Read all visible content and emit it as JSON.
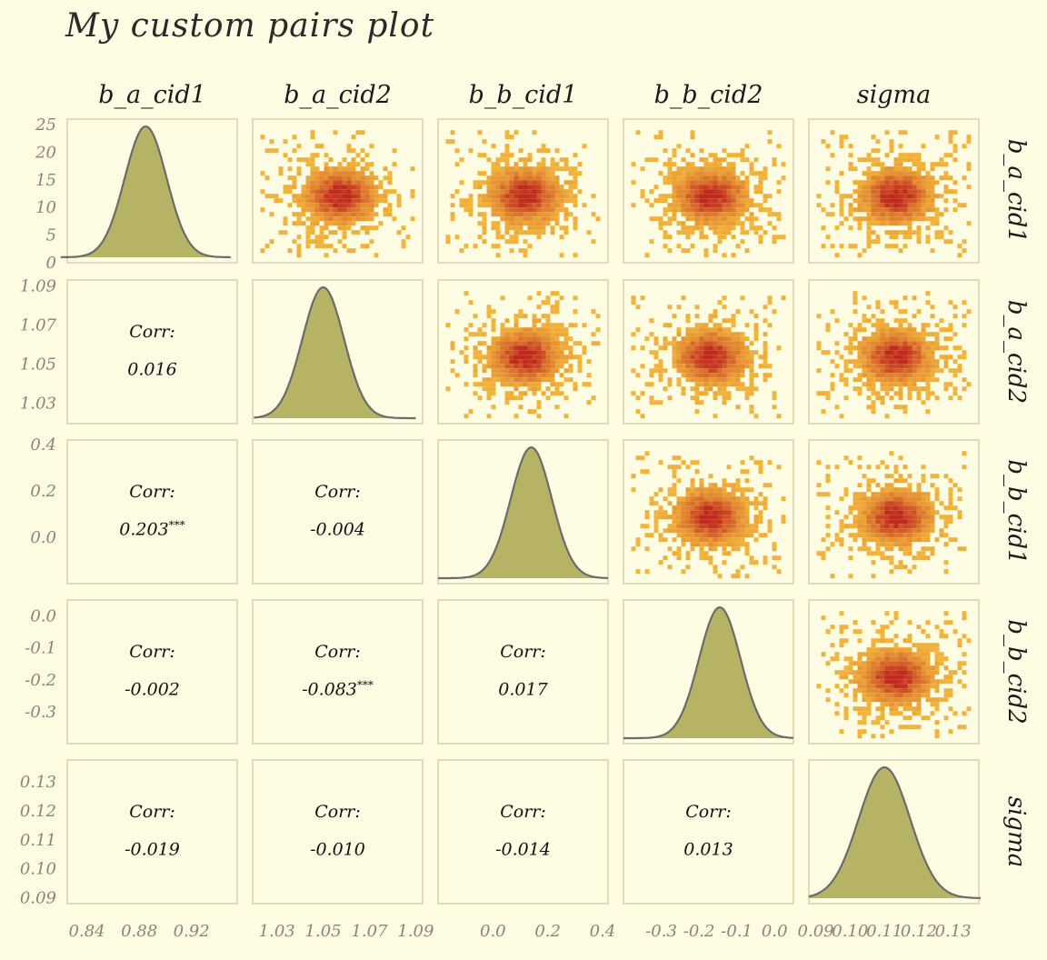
{
  "title": "My custom pairs plot",
  "colors": {
    "background": "#fefde4",
    "panel_border": "#e8d9b5",
    "density_fill": "#b6b464",
    "density_line": "#6b6b6b",
    "tick_text": "#8a8478",
    "heat_low": "#f2b43a",
    "heat_high": "#c02a1e"
  },
  "chart_data": {
    "type": "pairs",
    "variables": [
      "b_a_cid1",
      "b_a_cid2",
      "b_b_cid1",
      "b_b_cid2",
      "sigma"
    ],
    "diagonal": {
      "type": "density",
      "distributions": [
        {
          "variable": "b_a_cid1",
          "mean": 0.885,
          "sd": 0.016,
          "range": [
            0.82,
            0.95
          ]
        },
        {
          "variable": "b_a_cid2",
          "mean": 1.05,
          "sd": 0.009,
          "range": [
            1.02,
            1.09
          ]
        },
        {
          "variable": "b_b_cid1",
          "mean": 0.14,
          "sd": 0.075,
          "range": [
            -0.2,
            0.42
          ]
        },
        {
          "variable": "b_b_cid2",
          "mean": -0.145,
          "sd": 0.055,
          "range": [
            -0.4,
            0.05
          ]
        },
        {
          "variable": "sigma",
          "mean": 0.11,
          "sd": 0.0075,
          "range": [
            0.088,
            0.138
          ]
        }
      ],
      "first_panel_y_ticks": [
        "0",
        "5",
        "10",
        "15",
        "20",
        "25"
      ],
      "first_panel_y_range": [
        0,
        26
      ]
    },
    "upper": {
      "type": "bin2d"
    },
    "lower": {
      "type": "correlation",
      "label": "Corr:",
      "cells": [
        {
          "row": 1,
          "col": 0,
          "value": "0.016",
          "stars": ""
        },
        {
          "row": 2,
          "col": 0,
          "value": "0.203",
          "stars": "***"
        },
        {
          "row": 2,
          "col": 1,
          "value": "-0.004",
          "stars": ""
        },
        {
          "row": 3,
          "col": 0,
          "value": "-0.002",
          "stars": ""
        },
        {
          "row": 3,
          "col": 1,
          "value": "-0.083",
          "stars": "***"
        },
        {
          "row": 3,
          "col": 2,
          "value": "0.017",
          "stars": ""
        },
        {
          "row": 4,
          "col": 0,
          "value": "-0.019",
          "stars": ""
        },
        {
          "row": 4,
          "col": 1,
          "value": "-0.010",
          "stars": ""
        },
        {
          "row": 4,
          "col": 2,
          "value": "-0.014",
          "stars": ""
        },
        {
          "row": 4,
          "col": 3,
          "value": "0.013",
          "stars": ""
        }
      ]
    },
    "x_axes": [
      {
        "ticks": [
          "0.84",
          "0.88",
          "0.92"
        ],
        "values": [
          0.84,
          0.88,
          0.92
        ],
        "range": [
          0.825,
          0.955
        ]
      },
      {
        "ticks": [
          "1.03",
          "1.05",
          "1.07",
          "1.09"
        ],
        "values": [
          1.03,
          1.05,
          1.07,
          1.09
        ],
        "range": [
          1.0195,
          1.093
        ]
      },
      {
        "ticks": [
          "0.0",
          "0.2",
          "0.4"
        ],
        "values": [
          0.0,
          0.2,
          0.4
        ],
        "range": [
          -0.2,
          0.42
        ]
      },
      {
        "ticks": [
          "-0.3",
          "-0.2",
          "-0.1",
          "0.0"
        ],
        "values": [
          -0.3,
          -0.2,
          -0.1,
          0.0
        ],
        "range": [
          -0.4,
          0.05
        ]
      },
      {
        "ticks": [
          "0.09",
          "0.10",
          "0.11",
          "0.12",
          "0.13"
        ],
        "values": [
          0.09,
          0.1,
          0.11,
          0.12,
          0.13
        ],
        "range": [
          0.088,
          0.1375
        ]
      }
    ],
    "y_axes": [
      {
        "ticks": [
          "0",
          "5",
          "10",
          "15",
          "20",
          "25"
        ],
        "values": [
          0,
          5,
          10,
          15,
          20,
          25
        ],
        "range": [
          0,
          26
        ]
      },
      {
        "ticks": [
          "1.03",
          "1.05",
          "1.07",
          "1.09"
        ],
        "values": [
          1.03,
          1.05,
          1.07,
          1.09
        ],
        "range": [
          1.0195,
          1.093
        ]
      },
      {
        "ticks": [
          "0.0",
          "0.2",
          "0.4"
        ],
        "values": [
          0.0,
          0.2,
          0.4
        ],
        "range": [
          -0.2,
          0.42
        ]
      },
      {
        "ticks": [
          "-0.3",
          "-0.2",
          "-0.1",
          "0.0"
        ],
        "values": [
          -0.3,
          -0.2,
          -0.1,
          0.0
        ],
        "range": [
          -0.4,
          0.05
        ]
      },
      {
        "ticks": [
          "0.09",
          "0.10",
          "0.11",
          "0.12",
          "0.13"
        ],
        "values": [
          0.09,
          0.1,
          0.11,
          0.12,
          0.13
        ],
        "range": [
          0.088,
          0.1375
        ]
      }
    ]
  }
}
